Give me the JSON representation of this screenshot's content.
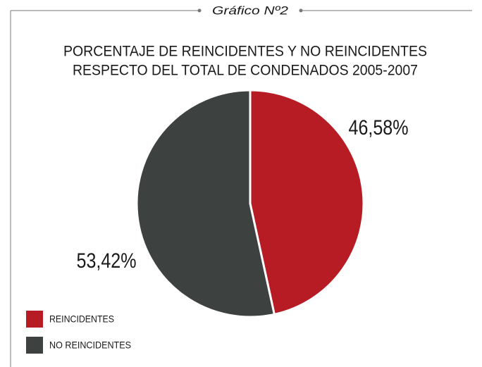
{
  "chart_data": {
    "type": "pie",
    "header": "Gráfico Nº2",
    "title": [
      "PORCENTAJE DE REINCIDENTES Y NO REINCIDENTES",
      "RESPECTO DEL TOTAL DE CONDENADOS 2005-2007"
    ],
    "categories": [
      "REINCIDENTES",
      "NO REINCIDENTES"
    ],
    "values": [
      46.58,
      53.42
    ],
    "value_labels": [
      "46,58%",
      "53,42%"
    ],
    "colors": [
      "#b71c25",
      "#3d4140"
    ],
    "legend": "bottom-left"
  }
}
